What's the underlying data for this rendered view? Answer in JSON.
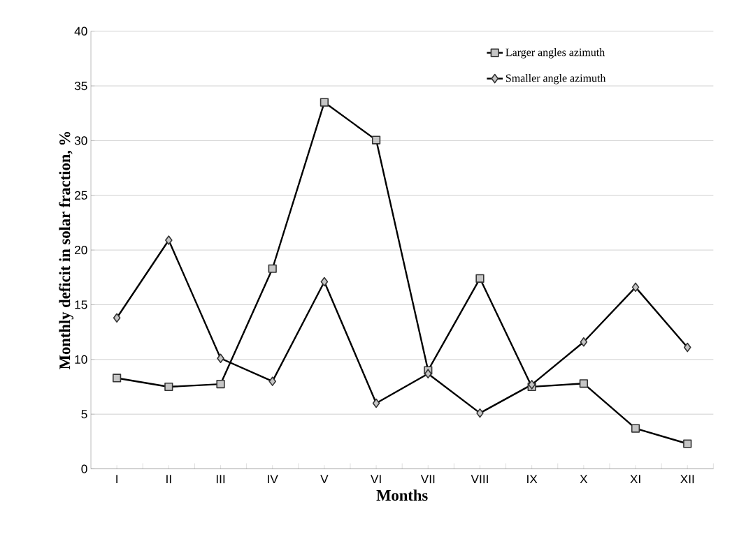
{
  "chart_data": {
    "type": "line",
    "xlabel": "Months",
    "ylabel": "Monthly deficit in solar fraction, %",
    "categories": [
      "I",
      "II",
      "III",
      "IV",
      "V",
      "VI",
      "VII",
      "VIII",
      "IX",
      "X",
      "XI",
      "XII"
    ],
    "series": [
      {
        "name": "Larger angles azimuth",
        "color": "#000000",
        "marker": "square",
        "values": [
          8.3,
          7.5,
          7.75,
          18.3,
          33.5,
          30.05,
          9.0,
          17.4,
          7.5,
          7.8,
          3.7,
          2.3
        ]
      },
      {
        "name": "Smaller angle azimuth",
        "color": "#000000",
        "marker": "diamond",
        "values": [
          13.8,
          20.9,
          10.1,
          8.0,
          17.1,
          6.0,
          8.7,
          5.1,
          7.7,
          11.6,
          16.6,
          11.1
        ]
      }
    ],
    "ylim": [
      0,
      40
    ],
    "yticks": [
      0,
      5,
      10,
      15,
      20,
      25,
      30,
      35,
      40
    ],
    "grid": "y",
    "legend": "top right",
    "line_style": "solid"
  }
}
